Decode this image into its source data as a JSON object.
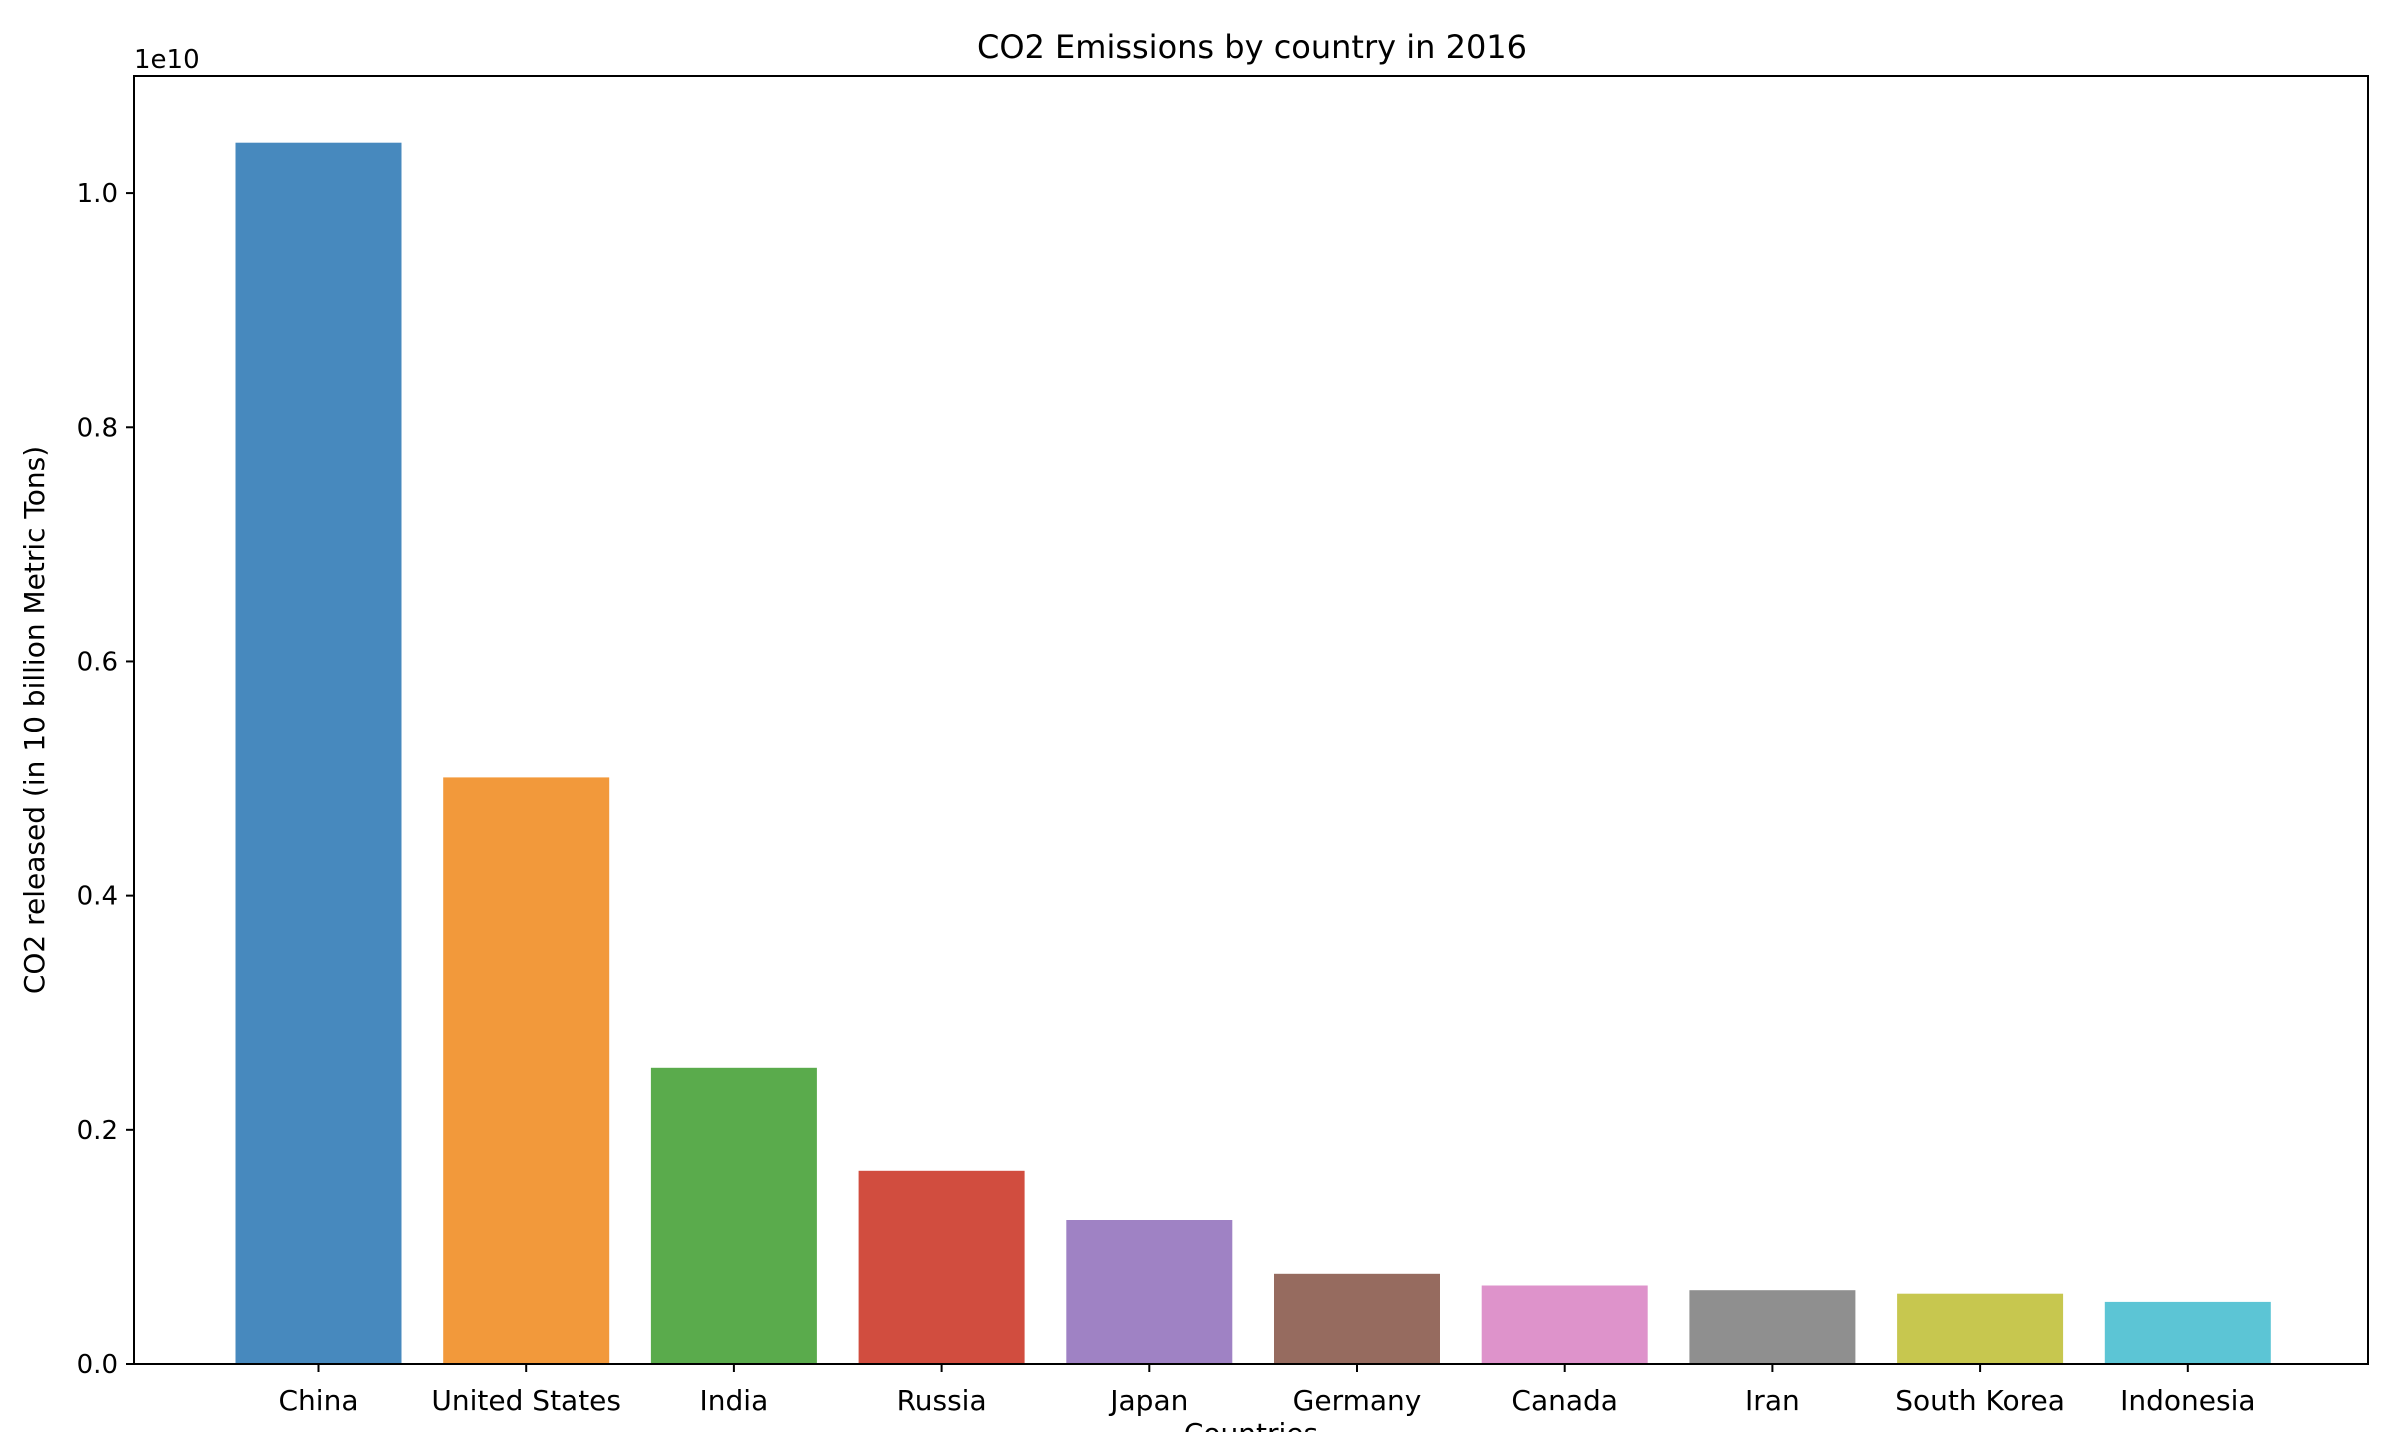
{
  "chart_data": {
    "type": "bar",
    "title": "CO2 Emissions by country in 2016",
    "xlabel": "Countries",
    "ylabel": "CO2 released (in 10 billion Metric Tons)",
    "y_offset_label": "1e10",
    "ylim": [
      0,
      11000000000
    ],
    "y_ticks": [
      0,
      2000000000,
      4000000000,
      6000000000,
      8000000000,
      10000000000
    ],
    "y_tick_labels": [
      "0.0",
      "0.2",
      "0.4",
      "0.6",
      "0.8",
      "1.0"
    ],
    "grid": false,
    "categories": [
      "China",
      "United States",
      "India",
      "Russia",
      "Japan",
      "Germany",
      "Canada",
      "Iran",
      "South Korea",
      "Indonesia"
    ],
    "values": [
      10430000000,
      5010000000,
      2530000000,
      1650000000,
      1230000000,
      770000000,
      670000000,
      630000000,
      600000000,
      530000000
    ],
    "colors": [
      "#4789be",
      "#f2993b",
      "#5aab4c",
      "#d14d3f",
      "#9f82c4",
      "#966b5f",
      "#de93cb",
      "#8f8f8f",
      "#c7c74f",
      "#5cc5d5"
    ]
  }
}
